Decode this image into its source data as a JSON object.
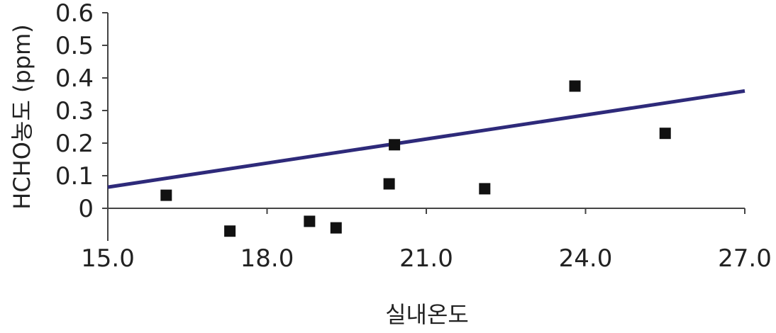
{
  "chart_data": {
    "type": "scatter",
    "title": "",
    "xlabel": "실내온도",
    "ylabel": "HCHO농도 (ppm)",
    "xlim": [
      15.0,
      27.0
    ],
    "ylim": [
      -0.1,
      0.6
    ],
    "x_ticks": [
      15.0,
      18.0,
      21.0,
      24.0,
      27.0
    ],
    "x_tick_labels": [
      "15.0",
      "18.0",
      "21.0",
      "24.0",
      "27.0"
    ],
    "y_ticks": [
      0,
      0.1,
      0.2,
      0.3,
      0.4,
      0.5,
      0.6
    ],
    "y_tick_labels": [
      "0",
      "0.1",
      "0.2",
      "0.3",
      "0.4",
      "0.5",
      "0.6"
    ],
    "grid": false,
    "legend": "none",
    "series": [
      {
        "marker": "square",
        "color": "#111111",
        "points": [
          {
            "x": 16.1,
            "y": 0.04
          },
          {
            "x": 17.3,
            "y": -0.07
          },
          {
            "x": 18.8,
            "y": -0.04
          },
          {
            "x": 19.3,
            "y": -0.06
          },
          {
            "x": 20.3,
            "y": 0.075
          },
          {
            "x": 20.4,
            "y": 0.195
          },
          {
            "x": 22.1,
            "y": 0.06
          },
          {
            "x": 23.8,
            "y": 0.375
          },
          {
            "x": 25.5,
            "y": 0.23
          }
        ]
      }
    ],
    "trendline": {
      "type": "linear",
      "color": "#2e2a7a",
      "points": [
        {
          "x": 15.0,
          "y": 0.065
        },
        {
          "x": 27.0,
          "y": 0.36
        }
      ]
    }
  }
}
